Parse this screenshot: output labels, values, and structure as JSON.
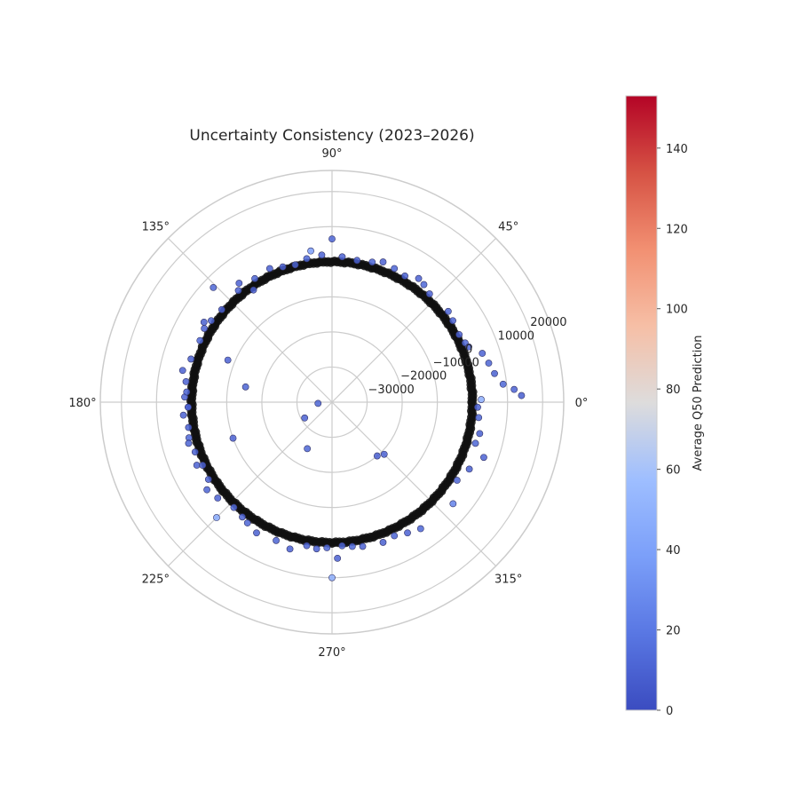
{
  "chart_data": {
    "type": "scatter",
    "projection": "polar",
    "title": "Uncertainty Consistency (2023–2026)",
    "theta_ticks_deg": [
      0,
      45,
      90,
      135,
      180,
      225,
      270,
      315
    ],
    "theta_tick_labels": [
      "0°",
      "45°",
      "90°",
      "135°",
      "180°",
      "225°",
      "270°",
      "315°"
    ],
    "r_lim": [
      -40000,
      26000
    ],
    "r_ticks": [
      -30000,
      -20000,
      -10000,
      0,
      10000,
      20000
    ],
    "r_tick_labels": [
      "−30000",
      "−20000",
      "−10000",
      "0",
      "10000",
      "20000"
    ],
    "r_label_angle_deg": 22.5,
    "dense_ring": {
      "r": 0,
      "count": 700,
      "color": "#111111",
      "description": "dense concentration of points at r≈0 across all angles"
    },
    "colorbar": {
      "label": "Average Q50 Prediction",
      "vmin": 0,
      "vmax": 153,
      "ticks": [
        0,
        20,
        40,
        60,
        80,
        100,
        120,
        140
      ],
      "colormap": "coolwarm"
    },
    "points": [
      [
        2,
        14000,
        8
      ],
      [
        4,
        12000,
        10
      ],
      [
        6,
        9000,
        12
      ],
      [
        10,
        7000,
        9
      ],
      [
        14,
        6000,
        11
      ],
      [
        18,
        5000,
        10
      ],
      [
        1,
        2500,
        48
      ],
      [
        -2,
        1500,
        10
      ],
      [
        -6,
        2000,
        11
      ],
      [
        -12,
        3000,
        9
      ],
      [
        -16,
        2500,
        12
      ],
      [
        -20,
        6000,
        10
      ],
      [
        -26,
        3500,
        9
      ],
      [
        -32,
        2000,
        11
      ],
      [
        -40,
        5000,
        25
      ],
      [
        -50,
        -20000,
        8
      ],
      [
        -55,
        4000,
        12
      ],
      [
        -60,
        3000,
        10
      ],
      [
        -65,
        2000,
        11
      ],
      [
        -70,
        2500,
        9
      ],
      [
        -78,
        2000,
        10
      ],
      [
        -82,
        1500,
        12
      ],
      [
        -86,
        1000,
        11
      ],
      [
        -88,
        4500,
        10
      ],
      [
        -90,
        10000,
        48
      ],
      [
        -92,
        1500,
        12
      ],
      [
        -96,
        2000,
        10
      ],
      [
        -100,
        1500,
        9
      ],
      [
        -106,
        3500,
        10
      ],
      [
        -112,
        2500,
        11
      ],
      [
        -120,
        3000,
        9
      ],
      [
        -125,
        2000,
        11
      ],
      [
        -128,
        1500,
        10
      ],
      [
        -133,
        1000,
        14
      ],
      [
        -135,
        6500,
        45
      ],
      [
        -140,
        2500,
        10
      ],
      [
        -145,
        3500,
        11
      ],
      [
        -148,
        1500,
        9
      ],
      [
        -155,
        2500,
        10
      ],
      [
        -160,
        -10000,
        10
      ],
      [
        -166,
        2000,
        12
      ],
      [
        -170,
        1500,
        9
      ],
      [
        -175,
        2500,
        10
      ],
      [
        -178,
        1000,
        11
      ],
      [
        178,
        2000,
        10
      ],
      [
        176,
        1500,
        9
      ],
      [
        172,
        2000,
        10
      ],
      [
        170,
        -15000,
        11
      ],
      [
        168,
        3500,
        10
      ],
      [
        163,
        2000,
        9
      ],
      [
        158,
        -8000,
        10
      ],
      [
        155,
        1500,
        12
      ],
      [
        150,
        2000,
        10
      ],
      [
        148,
        3000,
        9
      ],
      [
        146,
        1500,
        11
      ],
      [
        140,
        1000,
        10
      ],
      [
        136,
        7000,
        12
      ],
      [
        130,
        1500,
        9
      ],
      [
        128,
        3000,
        10
      ],
      [
        125,
        -1000,
        10
      ],
      [
        122,
        1500,
        11
      ],
      [
        115,
        2000,
        9
      ],
      [
        110,
        1000,
        10
      ],
      [
        105,
        500,
        11
      ],
      [
        100,
        1500,
        12
      ],
      [
        98,
        3500,
        38
      ],
      [
        94,
        2000,
        10
      ],
      [
        90,
        6500,
        11
      ],
      [
        86,
        1500,
        10
      ],
      [
        80,
        1000,
        9
      ],
      [
        74,
        1500,
        12
      ],
      [
        70,
        2500,
        10
      ],
      [
        65,
        2000,
        11
      ],
      [
        60,
        1500,
        9
      ],
      [
        55,
        3000,
        10
      ],
      [
        52,
        2500,
        12
      ],
      [
        48,
        1500,
        10
      ],
      [
        38,
        2000,
        11
      ],
      [
        34,
        1500,
        9
      ],
      [
        28,
        1000,
        10
      ],
      [
        24,
        1500,
        12
      ],
      [
        22,
        2000,
        10
      ],
      [
        182,
        1000,
        10
      ],
      [
        196,
        2500,
        11
      ],
      [
        200,
        1500,
        9
      ],
      [
        206,
        1000,
        10
      ],
      [
        -118,
        -25000,
        12
      ],
      [
        -45,
        -19000,
        10
      ],
      [
        -175,
        -36000,
        11
      ],
      [
        -150,
        -31000,
        10
      ]
    ]
  }
}
